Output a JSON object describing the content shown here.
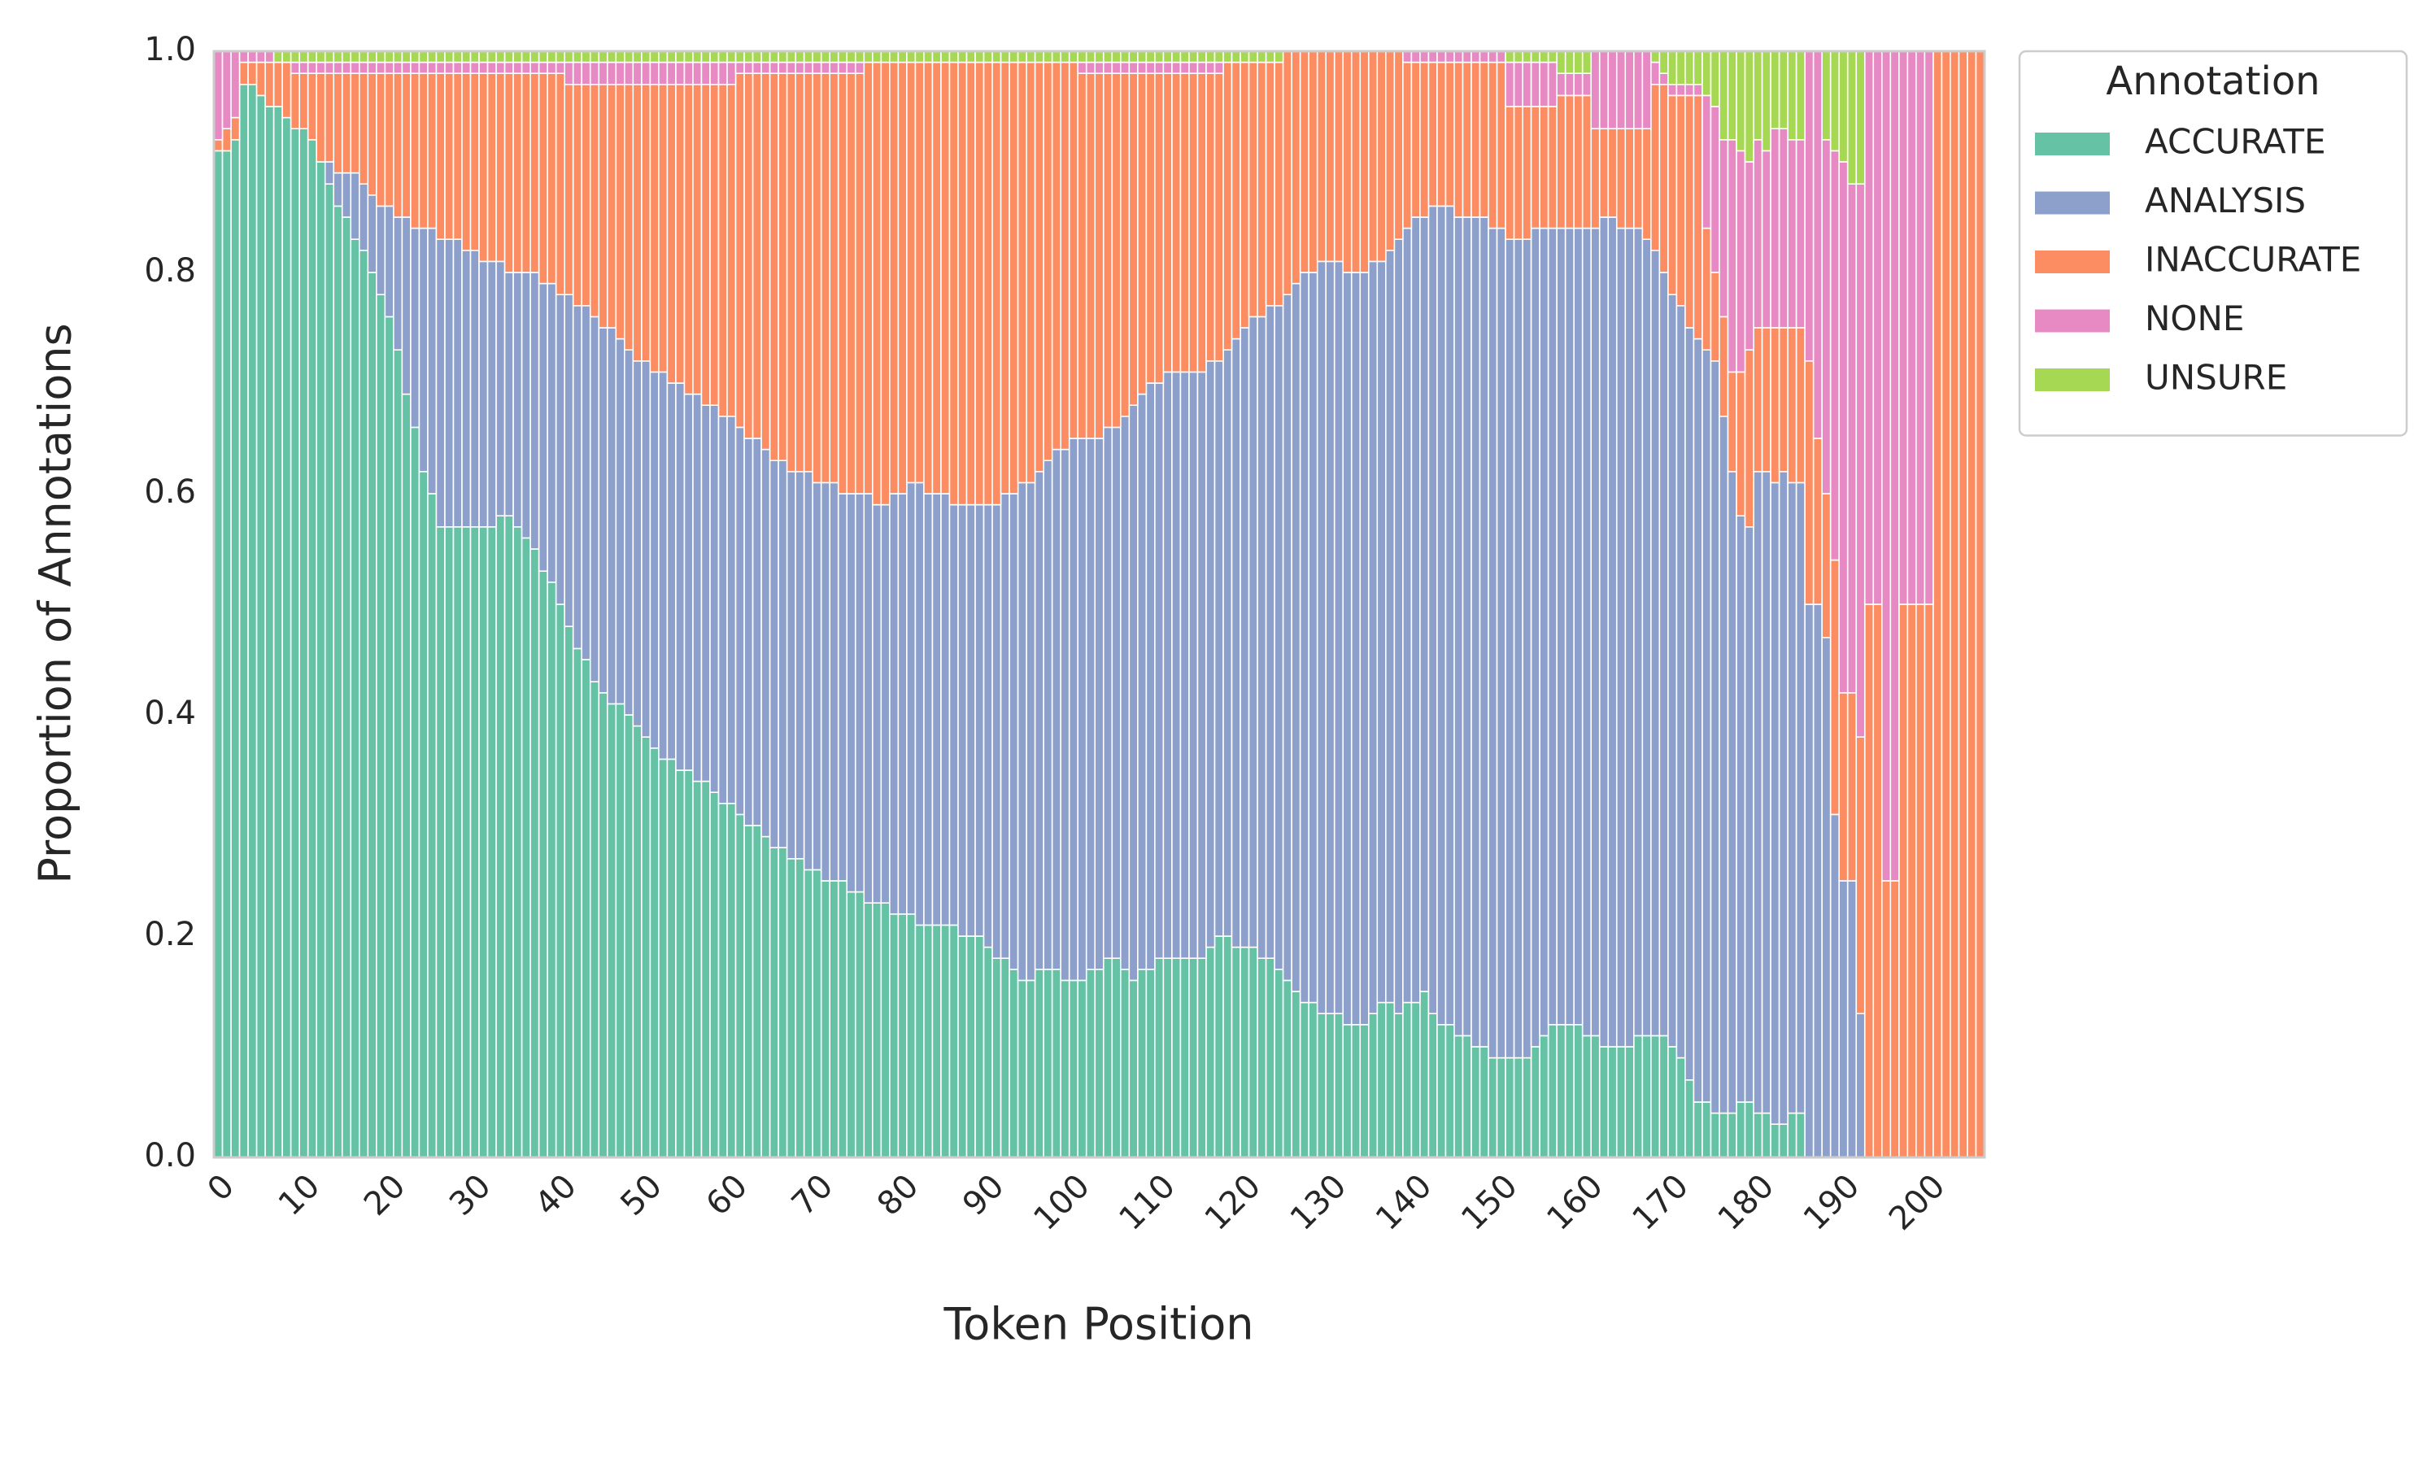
{
  "chart_data": {
    "type": "stacked_bar",
    "x_label": "Token Position",
    "y_label": "Proportion of Annotations",
    "legend_title": "Annotation",
    "legend": "outside upper right",
    "grid": false,
    "ylim": [
      0,
      1
    ],
    "yticks": [
      {
        "value": 0,
        "label": "0.0"
      },
      0.2,
      0.4,
      0.6,
      0.8,
      {
        "value": 1,
        "label": "1.0"
      }
    ],
    "categories": [
      0,
      null,
      null,
      null,
      null,
      null,
      null,
      null,
      null,
      null,
      10,
      null,
      null,
      null,
      null,
      null,
      null,
      null,
      null,
      null,
      20,
      null,
      null,
      null,
      null,
      null,
      null,
      null,
      null,
      null,
      30,
      null,
      null,
      null,
      null,
      null,
      null,
      null,
      null,
      null,
      40,
      null,
      null,
      null,
      null,
      null,
      null,
      null,
      null,
      null,
      50,
      null,
      null,
      null,
      null,
      null,
      null,
      null,
      null,
      null,
      60,
      null,
      null,
      null,
      null,
      null,
      null,
      null,
      null,
      null,
      70,
      null,
      null,
      null,
      null,
      null,
      null,
      null,
      null,
      null,
      80,
      null,
      null,
      null,
      null,
      null,
      null,
      null,
      null,
      null,
      90,
      null,
      null,
      null,
      null,
      null,
      null,
      null,
      null,
      null,
      100,
      null,
      null,
      null,
      null,
      null,
      null,
      null,
      null,
      null,
      110,
      null,
      null,
      null,
      null,
      null,
      null,
      null,
      null,
      null,
      120,
      null,
      null,
      null,
      null,
      null,
      null,
      null,
      null,
      null,
      130,
      null,
      null,
      null,
      null,
      null,
      null,
      null,
      null,
      null,
      140,
      null,
      null,
      null,
      null,
      null,
      null,
      null,
      null,
      null,
      150,
      null,
      null,
      null,
      null,
      null,
      null,
      null,
      null,
      null,
      160,
      null,
      null,
      null,
      null,
      null,
      null,
      null,
      null,
      null,
      170,
      null,
      null,
      null,
      null,
      null,
      null,
      null,
      null,
      null,
      180,
      null,
      null,
      null,
      null,
      null,
      null,
      null,
      null,
      null,
      190,
      null,
      null,
      null,
      null,
      null,
      null,
      null,
      null,
      null,
      200,
      null,
      null,
      null,
      null,
      null,
      null
    ],
    "series": [
      {
        "name": "ACCURATE",
        "color": "#66c2a5",
        "values": [
          0.91,
          0.91,
          0.92,
          0.97,
          0.97,
          0.96,
          0.95,
          0.95,
          0.94,
          0.93,
          0.93,
          0.92,
          0.9,
          0.88,
          0.86,
          0.85,
          0.83,
          0.82,
          0.8,
          0.78,
          0.76,
          0.73,
          0.69,
          0.66,
          0.62,
          0.6,
          0.57,
          0.57,
          0.57,
          0.57,
          0.57,
          0.57,
          0.57,
          0.58,
          0.58,
          0.57,
          0.56,
          0.55,
          0.53,
          0.52,
          0.5,
          0.48,
          0.46,
          0.45,
          0.43,
          0.42,
          0.41,
          0.41,
          0.4,
          0.39,
          0.38,
          0.37,
          0.36,
          0.36,
          0.35,
          0.35,
          0.34,
          0.34,
          0.33,
          0.32,
          0.32,
          0.31,
          0.3,
          0.3,
          0.29,
          0.28,
          0.28,
          0.27,
          0.27,
          0.26,
          0.26,
          0.25,
          0.25,
          0.25,
          0.24,
          0.24,
          0.23,
          0.23,
          0.23,
          0.22,
          0.22,
          0.22,
          0.21,
          0.21,
          0.21,
          0.21,
          0.21,
          0.2,
          0.2,
          0.2,
          0.19,
          0.18,
          0.18,
          0.17,
          0.16,
          0.16,
          0.17,
          0.17,
          0.17,
          0.16,
          0.16,
          0.16,
          0.17,
          0.17,
          0.18,
          0.18,
          0.17,
          0.16,
          0.17,
          0.17,
          0.18,
          0.18,
          0.18,
          0.18,
          0.18,
          0.18,
          0.19,
          0.2,
          0.2,
          0.19,
          0.19,
          0.19,
          0.18,
          0.18,
          0.17,
          0.16,
          0.15,
          0.14,
          0.14,
          0.13,
          0.13,
          0.13,
          0.12,
          0.12,
          0.12,
          0.13,
          0.14,
          0.14,
          0.13,
          0.14,
          0.14,
          0.15,
          0.13,
          0.12,
          0.12,
          0.11,
          0.11,
          0.1,
          0.1,
          0.09,
          0.09,
          0.09,
          0.09,
          0.09,
          0.1,
          0.11,
          0.12,
          0.12,
          0.12,
          0.12,
          0.11,
          0.11,
          0.1,
          0.1,
          0.1,
          0.1,
          0.11,
          0.11,
          0.11,
          0.11,
          0.1,
          0.09,
          0.07,
          0.05,
          0.05,
          0.04,
          0.04,
          0.04,
          0.05,
          0.05,
          0.04,
          0.04,
          0.03,
          0.03,
          0.04,
          0.04,
          0,
          0,
          0,
          0,
          0,
          0,
          0,
          0,
          0,
          0,
          0,
          0,
          0,
          0,
          0,
          0,
          0,
          0,
          0,
          0,
          0
        ]
      },
      {
        "name": "ANALYSIS",
        "color": "#8da0cb",
        "values": [
          0,
          0,
          0,
          0,
          0,
          0,
          0,
          0,
          0,
          0,
          0,
          0,
          0,
          0.02,
          0.03,
          0.04,
          0.06,
          0.06,
          0.07,
          0.08,
          0.1,
          0.12,
          0.16,
          0.18,
          0.22,
          0.24,
          0.26,
          0.26,
          0.26,
          0.25,
          0.25,
          0.24,
          0.24,
          0.23,
          0.22,
          0.23,
          0.24,
          0.25,
          0.26,
          0.27,
          0.28,
          0.3,
          0.31,
          0.32,
          0.33,
          0.33,
          0.34,
          0.33,
          0.33,
          0.33,
          0.34,
          0.34,
          0.35,
          0.34,
          0.35,
          0.34,
          0.35,
          0.34,
          0.35,
          0.35,
          0.35,
          0.35,
          0.35,
          0.35,
          0.35,
          0.35,
          0.35,
          0.35,
          0.35,
          0.36,
          0.35,
          0.36,
          0.36,
          0.35,
          0.36,
          0.36,
          0.37,
          0.36,
          0.36,
          0.38,
          0.38,
          0.39,
          0.4,
          0.39,
          0.39,
          0.39,
          0.38,
          0.39,
          0.39,
          0.39,
          0.4,
          0.41,
          0.42,
          0.43,
          0.45,
          0.45,
          0.45,
          0.46,
          0.47,
          0.48,
          0.49,
          0.49,
          0.48,
          0.48,
          0.48,
          0.48,
          0.5,
          0.52,
          0.52,
          0.53,
          0.52,
          0.53,
          0.53,
          0.53,
          0.53,
          0.53,
          0.53,
          0.52,
          0.53,
          0.55,
          0.56,
          0.57,
          0.58,
          0.59,
          0.6,
          0.62,
          0.64,
          0.66,
          0.66,
          0.68,
          0.68,
          0.68,
          0.68,
          0.68,
          0.68,
          0.68,
          0.67,
          0.68,
          0.7,
          0.7,
          0.71,
          0.7,
          0.73,
          0.74,
          0.74,
          0.74,
          0.74,
          0.75,
          0.75,
          0.75,
          0.75,
          0.74,
          0.74,
          0.74,
          0.74,
          0.73,
          0.72,
          0.72,
          0.72,
          0.72,
          0.73,
          0.73,
          0.75,
          0.75,
          0.74,
          0.74,
          0.73,
          0.72,
          0.71,
          0.69,
          0.68,
          0.68,
          0.68,
          0.69,
          0.68,
          0.68,
          0.63,
          0.58,
          0.53,
          0.52,
          0.58,
          0.58,
          0.58,
          0.59,
          0.57,
          0.57,
          0.5,
          0.5,
          0.47,
          0.31,
          0.25,
          0.25,
          0.13,
          0,
          0,
          0,
          0,
          0,
          0,
          0,
          0,
          0,
          0,
          0,
          0,
          0,
          0
        ]
      },
      {
        "name": "INACCURATE",
        "color": "#fc8d62",
        "values": [
          0.01,
          0.02,
          0.02,
          0.02,
          0.02,
          0.03,
          0.04,
          0.04,
          0.05,
          0.05,
          0.05,
          0.06,
          0.08,
          0.08,
          0.09,
          0.09,
          0.09,
          0.1,
          0.11,
          0.12,
          0.12,
          0.13,
          0.13,
          0.14,
          0.14,
          0.14,
          0.15,
          0.15,
          0.15,
          0.16,
          0.16,
          0.17,
          0.17,
          0.17,
          0.18,
          0.18,
          0.18,
          0.18,
          0.19,
          0.19,
          0.2,
          0.19,
          0.2,
          0.2,
          0.21,
          0.22,
          0.22,
          0.23,
          0.24,
          0.25,
          0.25,
          0.26,
          0.26,
          0.27,
          0.27,
          0.28,
          0.28,
          0.29,
          0.29,
          0.3,
          0.3,
          0.32,
          0.33,
          0.33,
          0.34,
          0.35,
          0.35,
          0.36,
          0.36,
          0.36,
          0.37,
          0.37,
          0.37,
          0.38,
          0.38,
          0.38,
          0.39,
          0.4,
          0.4,
          0.39,
          0.39,
          0.38,
          0.38,
          0.39,
          0.39,
          0.39,
          0.4,
          0.4,
          0.4,
          0.4,
          0.4,
          0.4,
          0.39,
          0.39,
          0.38,
          0.38,
          0.37,
          0.36,
          0.35,
          0.35,
          0.34,
          0.33,
          0.33,
          0.33,
          0.32,
          0.32,
          0.31,
          0.3,
          0.29,
          0.28,
          0.28,
          0.27,
          0.27,
          0.27,
          0.27,
          0.27,
          0.26,
          0.26,
          0.26,
          0.25,
          0.24,
          0.23,
          0.23,
          0.22,
          0.22,
          0.22,
          0.21,
          0.2,
          0.2,
          0.19,
          0.19,
          0.19,
          0.2,
          0.2,
          0.2,
          0.19,
          0.19,
          0.18,
          0.17,
          0.15,
          0.14,
          0.14,
          0.13,
          0.13,
          0.13,
          0.14,
          0.14,
          0.14,
          0.14,
          0.15,
          0.15,
          0.12,
          0.12,
          0.12,
          0.11,
          0.11,
          0.11,
          0.12,
          0.12,
          0.12,
          0.12,
          0.09,
          0.08,
          0.08,
          0.09,
          0.09,
          0.09,
          0.1,
          0.15,
          0.17,
          0.18,
          0.19,
          0.21,
          0.22,
          0.11,
          0.08,
          0.09,
          0.09,
          0.13,
          0.16,
          0.13,
          0.13,
          0.14,
          0.13,
          0.14,
          0.14,
          0.22,
          0.15,
          0.13,
          0.23,
          0.17,
          0.17,
          0.25,
          0.5,
          0.5,
          0.25,
          0.25,
          0.5,
          0.5,
          0.5,
          0.5,
          1,
          1,
          1,
          1,
          1,
          1
        ]
      },
      {
        "name": "NONE",
        "color": "#e78ac3",
        "values": [
          0.08,
          0.07,
          0.06,
          0.01,
          0.01,
          0.01,
          0.01,
          0,
          0,
          0.01,
          0.01,
          0.01,
          0.01,
          0.01,
          0.01,
          0.01,
          0.01,
          0.01,
          0.01,
          0.01,
          0.01,
          0.01,
          0.01,
          0.01,
          0.01,
          0.01,
          0.01,
          0.01,
          0.01,
          0.01,
          0.01,
          0.01,
          0.01,
          0.01,
          0.01,
          0.01,
          0.01,
          0.01,
          0.01,
          0.01,
          0.01,
          0.02,
          0.02,
          0.02,
          0.02,
          0.02,
          0.02,
          0.02,
          0.02,
          0.02,
          0.02,
          0.02,
          0.02,
          0.02,
          0.02,
          0.02,
          0.02,
          0.02,
          0.02,
          0.02,
          0.02,
          0.01,
          0.01,
          0.01,
          0.01,
          0.01,
          0.01,
          0.01,
          0.01,
          0.01,
          0.01,
          0.01,
          0.01,
          0.01,
          0.01,
          0.01,
          0,
          0,
          0,
          0,
          0,
          0,
          0,
          0,
          0,
          0,
          0,
          0,
          0,
          0,
          0,
          0,
          0,
          0,
          0,
          0,
          0,
          0,
          0,
          0,
          0,
          0.01,
          0.01,
          0.01,
          0.01,
          0.01,
          0.01,
          0.01,
          0.01,
          0.01,
          0.01,
          0.01,
          0.01,
          0.01,
          0.01,
          0.01,
          0.01,
          0.01,
          0,
          0,
          0,
          0,
          0,
          0,
          0,
          0,
          0,
          0,
          0,
          0,
          0,
          0,
          0,
          0,
          0,
          0,
          0,
          0,
          0,
          0.01,
          0.01,
          0.01,
          0.01,
          0.01,
          0.01,
          0.01,
          0.01,
          0.01,
          0.01,
          0.01,
          0.01,
          0.04,
          0.04,
          0.04,
          0.04,
          0.04,
          0.04,
          0.02,
          0.02,
          0.02,
          0.02,
          0.07,
          0.07,
          0.07,
          0.07,
          0.07,
          0.07,
          0.07,
          0.02,
          0.01,
          0.01,
          0.01,
          0.01,
          0.01,
          0.12,
          0.15,
          0.16,
          0.21,
          0.2,
          0.17,
          0.17,
          0.16,
          0.18,
          0.18,
          0.17,
          0.17,
          0.28,
          0.35,
          0.32,
          0.37,
          0.48,
          0.46,
          0.5,
          0.5,
          0.5,
          0.75,
          0.75,
          0.5,
          0.5,
          0.5,
          0.5,
          0,
          0,
          0,
          0,
          0,
          0
        ]
      },
      {
        "name": "UNSURE",
        "color": "#a6d854",
        "values": [
          0,
          0,
          0,
          0,
          0,
          0,
          0,
          0.01,
          0.01,
          0.01,
          0.01,
          0.01,
          0.01,
          0.01,
          0.01,
          0.01,
          0.01,
          0.01,
          0.01,
          0.01,
          0.01,
          0.01,
          0.01,
          0.01,
          0.01,
          0.01,
          0.01,
          0.01,
          0.01,
          0.01,
          0.01,
          0.01,
          0.01,
          0.01,
          0.01,
          0.01,
          0.01,
          0.01,
          0.01,
          0.01,
          0.01,
          0.01,
          0.01,
          0.01,
          0.01,
          0.01,
          0.01,
          0.01,
          0.01,
          0.01,
          0.01,
          0.01,
          0.01,
          0.01,
          0.01,
          0.01,
          0.01,
          0.01,
          0.01,
          0.01,
          0.01,
          0.01,
          0.01,
          0.01,
          0.01,
          0.01,
          0.01,
          0.01,
          0.01,
          0.01,
          0.01,
          0.01,
          0.01,
          0.01,
          0.01,
          0.01,
          0.01,
          0.01,
          0.01,
          0.01,
          0.01,
          0.01,
          0.01,
          0.01,
          0.01,
          0.01,
          0.01,
          0.01,
          0.01,
          0.01,
          0.01,
          0.01,
          0.01,
          0.01,
          0.01,
          0.01,
          0.01,
          0.01,
          0.01,
          0.01,
          0.01,
          0.01,
          0.01,
          0.01,
          0.01,
          0.01,
          0.01,
          0.01,
          0.01,
          0.01,
          0.01,
          0.01,
          0.01,
          0.01,
          0.01,
          0.01,
          0.01,
          0.01,
          0.01,
          0.01,
          0.01,
          0.01,
          0.01,
          0.01,
          0.01,
          0,
          0,
          0,
          0,
          0,
          0,
          0,
          0,
          0,
          0,
          0,
          0,
          0,
          0,
          0,
          0,
          0,
          0,
          0,
          0,
          0,
          0,
          0,
          0,
          0,
          0,
          0.01,
          0.01,
          0.01,
          0.01,
          0.01,
          0.01,
          0.02,
          0.02,
          0.02,
          0.02,
          0,
          0,
          0,
          0,
          0,
          0,
          0,
          0.01,
          0.02,
          0.03,
          0.03,
          0.03,
          0.03,
          0.04,
          0.05,
          0.08,
          0.08,
          0.09,
          0.1,
          0.08,
          0.09,
          0.07,
          0.07,
          0.08,
          0.08,
          0,
          0,
          0.08,
          0.09,
          0.1,
          0.12,
          0.12,
          0,
          0,
          0,
          0,
          0,
          0,
          0,
          0,
          0,
          0,
          0,
          0,
          0,
          0
        ]
      }
    ]
  }
}
